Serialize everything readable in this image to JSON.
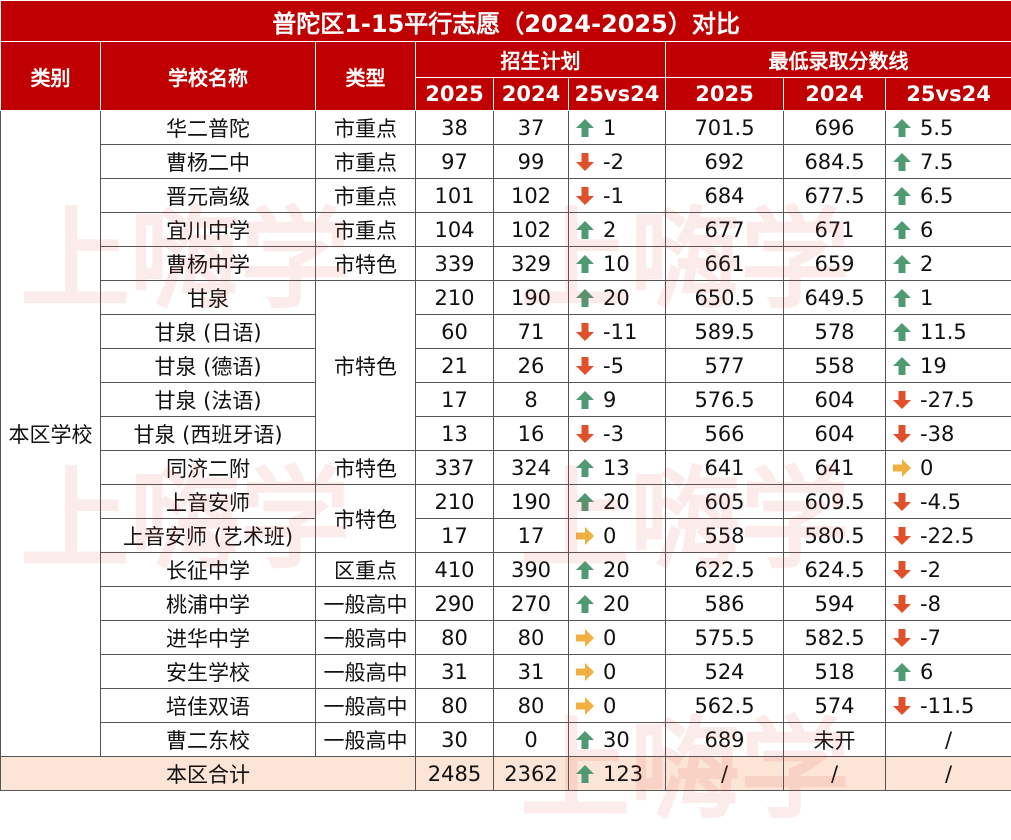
{
  "title": "普陀区1-15平行志愿（2024-2025）对比",
  "header": {
    "category": "类别",
    "school": "学校名称",
    "type": "类型",
    "enroll": "招生计划",
    "score": "最低录取分数线",
    "sub": [
      "2025",
      "2024",
      "25vs24",
      "2025",
      "2024",
      "25vs24"
    ]
  },
  "group": "本区学校",
  "watermark": "上嗨学",
  "rows": [
    {
      "school": "华二普陀",
      "type": "市重点",
      "enroll": [
        38,
        37,
        1
      ],
      "score": [
        701.5,
        696,
        5.5
      ]
    },
    {
      "school": "曹杨二中",
      "type": "市重点",
      "enroll": [
        97,
        99,
        -2
      ],
      "score": [
        692,
        684.5,
        7.5
      ]
    },
    {
      "school": "晋元高级",
      "type": "市重点",
      "enroll": [
        101,
        102,
        -1
      ],
      "score": [
        684,
        677.5,
        6.5
      ]
    },
    {
      "school": "宜川中学",
      "type": "市重点",
      "enroll": [
        104,
        102,
        2
      ],
      "score": [
        677,
        671,
        6
      ]
    },
    {
      "school": "曹杨中学",
      "type": "市特色",
      "enroll": [
        339,
        329,
        10
      ],
      "score": [
        661,
        659,
        2
      ]
    },
    {
      "school": "甘泉",
      "type": "市特色",
      "enroll": [
        210,
        190,
        20
      ],
      "score": [
        650.5,
        649.5,
        1
      ]
    },
    {
      "school": "甘泉 (日语)",
      "type": null,
      "enroll": [
        60,
        71,
        -11
      ],
      "score": [
        589.5,
        578,
        11.5
      ]
    },
    {
      "school": "甘泉 (德语)",
      "type": null,
      "enroll": [
        21,
        26,
        -5
      ],
      "score": [
        577,
        558,
        19
      ]
    },
    {
      "school": "甘泉 (法语)",
      "type": null,
      "enroll": [
        17,
        8,
        9
      ],
      "score": [
        576.5,
        604,
        -27.5
      ]
    },
    {
      "school": "甘泉 (西班牙语)",
      "type": null,
      "enroll": [
        13,
        16,
        -3
      ],
      "score": [
        566,
        604,
        -38
      ]
    },
    {
      "school": "同济二附",
      "type": "市特色",
      "enroll": [
        337,
        324,
        13
      ],
      "score": [
        641,
        641,
        0
      ]
    },
    {
      "school": "上音安师",
      "type": "市特色",
      "enroll": [
        210,
        190,
        20
      ],
      "score": [
        605,
        609.5,
        -4.5
      ]
    },
    {
      "school": "上音安师 (艺术班)",
      "type": null,
      "enroll": [
        17,
        17,
        0
      ],
      "score": [
        558,
        580.5,
        -22.5
      ]
    },
    {
      "school": "长征中学",
      "type": "区重点",
      "enroll": [
        410,
        390,
        20
      ],
      "score": [
        622.5,
        624.5,
        -2
      ]
    },
    {
      "school": "桃浦中学",
      "type": "一般高中",
      "enroll": [
        290,
        270,
        20
      ],
      "score": [
        586,
        594,
        -8
      ]
    },
    {
      "school": "进华中学",
      "type": "一般高中",
      "enroll": [
        80,
        80,
        0
      ],
      "score": [
        575.5,
        582.5,
        -7
      ]
    },
    {
      "school": "安生学校",
      "type": "一般高中",
      "enroll": [
        31,
        31,
        0
      ],
      "score": [
        524,
        518,
        6
      ]
    },
    {
      "school": "培佳双语",
      "type": "一般高中",
      "enroll": [
        80,
        80,
        0
      ],
      "score": [
        562.5,
        574,
        -11.5
      ]
    },
    {
      "school": "曹二东校",
      "type": "一般高中",
      "enroll": [
        30,
        0,
        30
      ],
      "score": [
        689,
        "未开",
        "/"
      ]
    }
  ],
  "total": {
    "label": "本区合计",
    "enroll": [
      2485,
      2362,
      123
    ],
    "score": [
      "/",
      "/",
      "/"
    ]
  }
}
